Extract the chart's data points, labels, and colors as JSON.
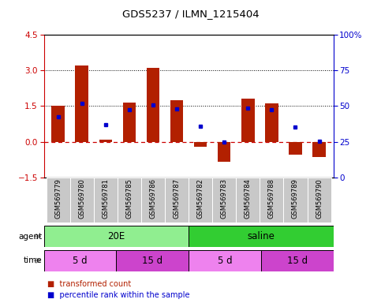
{
  "title": "GDS5237 / ILMN_1215404",
  "samples": [
    "GSM569779",
    "GSM569780",
    "GSM569781",
    "GSM569785",
    "GSM569786",
    "GSM569787",
    "GSM569782",
    "GSM569783",
    "GSM569784",
    "GSM569788",
    "GSM569789",
    "GSM569790"
  ],
  "bar_values": [
    1.5,
    3.2,
    0.1,
    1.65,
    3.1,
    1.75,
    -0.2,
    -0.85,
    1.82,
    1.6,
    -0.55,
    -0.65
  ],
  "percentile_values": [
    1.05,
    1.62,
    0.7,
    1.35,
    1.55,
    1.38,
    0.65,
    0.0,
    1.42,
    1.35,
    0.63,
    0.02
  ],
  "ylim": [
    -1.5,
    4.5
  ],
  "y2lim": [
    0,
    100
  ],
  "yticks": [
    -1.5,
    0,
    1.5,
    3,
    4.5
  ],
  "y2ticks": [
    0,
    25,
    50,
    75,
    100
  ],
  "bar_color": "#B22000",
  "percentile_color": "#0000CD",
  "zero_line_color": "#CC0000",
  "dotted_line_color": "#000000",
  "agent_groups": [
    {
      "label": "20E",
      "start": 0,
      "end": 6,
      "color": "#90EE90"
    },
    {
      "label": "saline",
      "start": 6,
      "end": 12,
      "color": "#32CD32"
    }
  ],
  "time_groups": [
    {
      "label": "5 d",
      "start": 0,
      "end": 3,
      "color": "#EE82EE"
    },
    {
      "label": "15 d",
      "start": 3,
      "end": 6,
      "color": "#CC44CC"
    },
    {
      "label": "5 d",
      "start": 6,
      "end": 9,
      "color": "#EE82EE"
    },
    {
      "label": "15 d",
      "start": 9,
      "end": 12,
      "color": "#CC44CC"
    }
  ],
  "agent_label": "agent",
  "time_label": "time",
  "legend_bar": "transformed count",
  "legend_pct": "percentile rank within the sample",
  "ytick_color": "#CC0000",
  "y2tick_color": "#0000CD",
  "bg_color": "#FFFFFF",
  "xticklabel_bg": "#C8C8C8"
}
